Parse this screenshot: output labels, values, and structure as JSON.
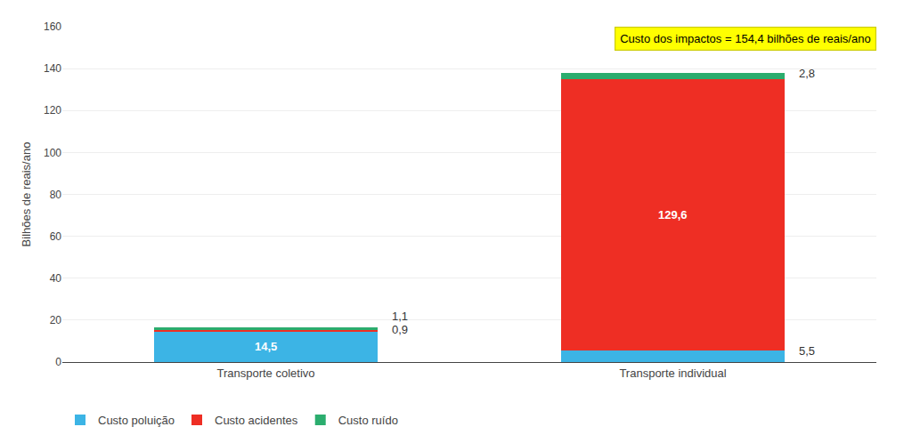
{
  "chart_data": {
    "type": "bar",
    "stacked": true,
    "categories": [
      "Transporte coletivo",
      "Transporte individual"
    ],
    "series": [
      {
        "name": "Custo poluição",
        "color": "#3CB4E5",
        "values": [
          14.5,
          5.5
        ],
        "value_labels": [
          "14,5",
          "5,5"
        ]
      },
      {
        "name": "Custo acidentes",
        "color": "#EE2E24",
        "values": [
          0.9,
          129.6
        ],
        "value_labels": [
          "0,9",
          "129,6"
        ]
      },
      {
        "name": "Custo ruído",
        "color": "#2BAD6E",
        "values": [
          1.1,
          2.8
        ],
        "value_labels": [
          "1,1",
          "2,8"
        ]
      }
    ],
    "ylabel": "Bilhões de reais/ano",
    "ylim": [
      0,
      160
    ],
    "yticks": [
      0,
      20,
      40,
      60,
      80,
      100,
      120,
      140,
      160
    ],
    "annotation": "Custo dos impactos = 154,4 bilhões de reais/ano",
    "grid": true,
    "legend": "bottom",
    "data_labels": true
  }
}
